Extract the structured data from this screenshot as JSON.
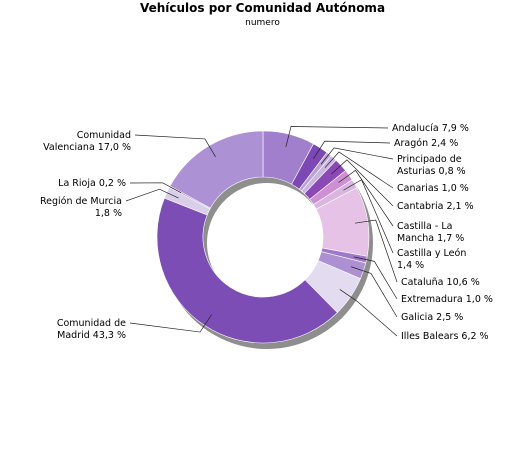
{
  "chart_data": {
    "type": "pie",
    "title": "Vehículos por Comunidad Autónoma",
    "subtitle": "numero",
    "donut": true,
    "slices": [
      {
        "label": [
          "Andalucía 7,9 %"
        ],
        "value": 7.9,
        "color": "#a27fcd"
      },
      {
        "label": [
          "Aragón 2,4 %"
        ],
        "value": 2.4,
        "color": "#7b48b4"
      },
      {
        "label": [
          "Principado de",
          "Asturias 0,8 %"
        ],
        "value": 0.8,
        "color": "#b9a1d9"
      },
      {
        "label": [
          "Canarias 1,0 %"
        ],
        "value": 1.0,
        "color": "#c8b6e0"
      },
      {
        "label": [
          "Cantabria 2,1 %"
        ],
        "value": 2.1,
        "color": "#8a49b5"
      },
      {
        "label": [
          "Castilla - La",
          "Mancha 1,7 %"
        ],
        "value": 1.7,
        "color": "#cf8fd3"
      },
      {
        "label": [
          "Castilla y León",
          "1,4 %"
        ],
        "value": 1.4,
        "color": "#d9b6e0"
      },
      {
        "label": [
          "Cataluña 10,6 %"
        ],
        "value": 10.6,
        "color": "#e6c3e6"
      },
      {
        "label": [
          "Extremadura 1,0 %"
        ],
        "value": 1.0,
        "color": "#9f79c9"
      },
      {
        "label": [
          "Galicia 2,5 %"
        ],
        "value": 2.5,
        "color": "#ad90d2"
      },
      {
        "label": [
          "Illes Balears 6,2 %"
        ],
        "value": 6.2,
        "color": "#e3dbf0"
      },
      {
        "label": [
          "Comunidad de",
          "Madrid 43,3 %"
        ],
        "value": 43.3,
        "color": "#7b4db5"
      },
      {
        "label": [
          "Región de Murcia",
          "1,8 %"
        ],
        "value": 1.8,
        "color": "#d9cfe9"
      },
      {
        "label": [
          "La Rioja 0,2 %"
        ],
        "value": 0.2,
        "color": "#8f68c0"
      },
      {
        "label": [
          "Comunidad",
          "Valenciana 17,0 %"
        ],
        "value": 17.0,
        "color": "#ac91d5"
      }
    ]
  }
}
